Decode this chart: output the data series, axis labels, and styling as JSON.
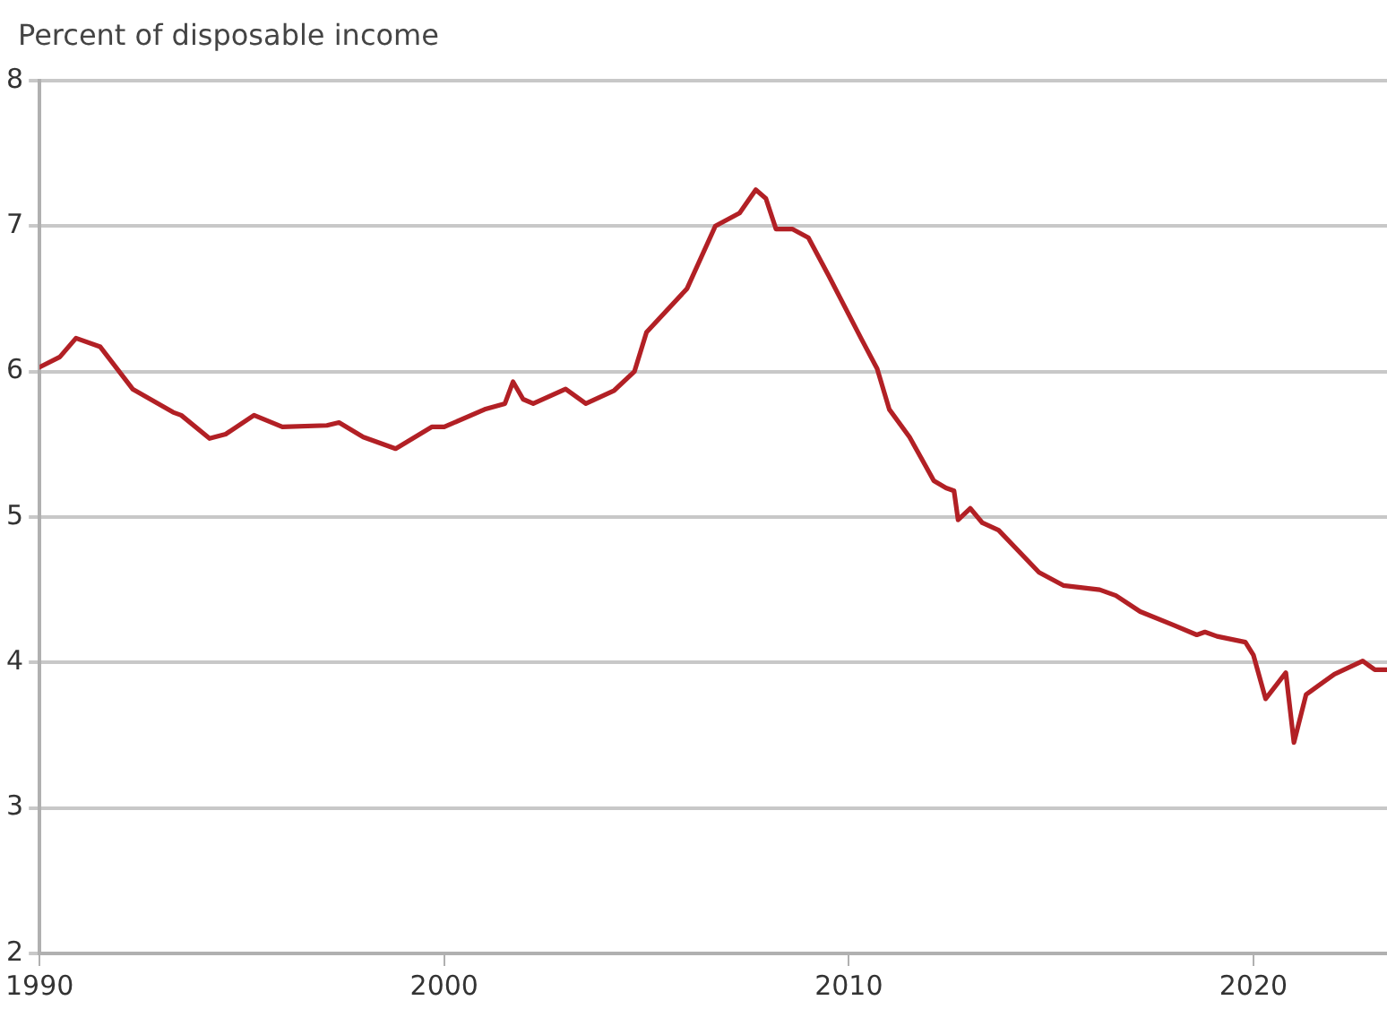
{
  "chart_data": {
    "type": "line",
    "ylabel": "Percent of disposable income",
    "x": [
      1990,
      1990.5,
      1990.9,
      1991.5,
      1992.3,
      1993.3,
      1993.5,
      1994.2,
      1994.6,
      1995.3,
      1996.0,
      1997.1,
      1997.4,
      1998.0,
      1998.8,
      1999.7,
      2000.0,
      2001.0,
      2001.5,
      2001.7,
      2001.95,
      2002.2,
      2003.0,
      2003.5,
      2004.2,
      2004.7,
      2005.0,
      2006.0,
      2006.7,
      2007.3,
      2007.7,
      2007.95,
      2008.2,
      2008.6,
      2009.0,
      2009.5,
      2010.3,
      2010.7,
      2011.0,
      2011.5,
      2012.1,
      2012.4,
      2012.6,
      2012.7,
      2013.0,
      2013.3,
      2013.7,
      2014.7,
      2015.3,
      2016.2,
      2016.6,
      2017.2,
      2018.0,
      2018.6,
      2018.8,
      2019.1,
      2019.8,
      2020.0,
      2020.3,
      2020.8,
      2021.0,
      2021.3,
      2022.0,
      2022.7,
      2023.0,
      2023.3
    ],
    "series": [
      {
        "color": "#b22025",
        "values": [
          6.03,
          6.1,
          6.23,
          6.17,
          5.88,
          5.72,
          5.7,
          5.54,
          5.57,
          5.7,
          5.62,
          5.63,
          5.65,
          5.55,
          5.47,
          5.62,
          5.62,
          5.74,
          5.78,
          5.93,
          5.81,
          5.78,
          5.88,
          5.78,
          5.87,
          6.0,
          6.27,
          6.57,
          7.0,
          7.09,
          7.25,
          7.19,
          6.98,
          6.98,
          6.92,
          6.66,
          6.23,
          6.02,
          5.74,
          5.55,
          5.25,
          5.2,
          5.18,
          4.98,
          5.06,
          4.96,
          4.91,
          4.62,
          4.53,
          4.5,
          4.46,
          4.35,
          4.26,
          4.19,
          4.21,
          4.18,
          4.14,
          4.05,
          3.75,
          3.93,
          3.45,
          3.78,
          3.92,
          4.01,
          3.95,
          3.95
        ]
      }
    ],
    "xlim": [
      1990,
      2023.3
    ],
    "xticks": [
      1990,
      2000,
      2010,
      2020
    ],
    "ylim": [
      2,
      8
    ],
    "yticks": [
      2,
      3,
      4,
      5,
      6,
      7,
      8
    ],
    "grid": "y",
    "legend": false,
    "marker": "none",
    "line_style": "solid"
  }
}
